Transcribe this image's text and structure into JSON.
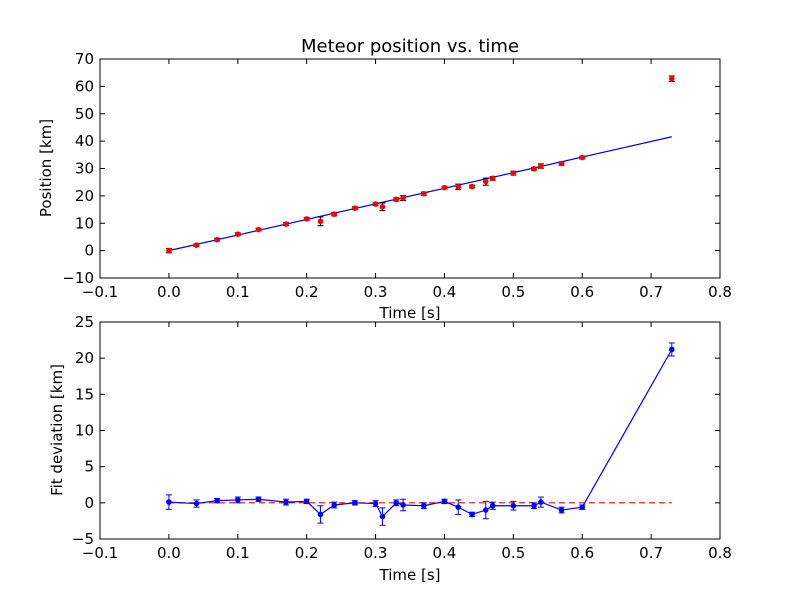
{
  "chart_data": [
    {
      "type": "scatter",
      "title": "Meteor position vs. time",
      "xlabel": "Time [s]",
      "ylabel": "Position [km]",
      "xlim": [
        -0.1,
        0.8
      ],
      "ylim": [
        -10,
        70
      ],
      "xticks": [
        "−0.1",
        "0.0",
        "0.1",
        "0.2",
        "0.3",
        "0.4",
        "0.5",
        "0.6",
        "0.7",
        "0.8"
      ],
      "yticks": [
        "−10",
        "0",
        "10",
        "20",
        "30",
        "40",
        "50",
        "60",
        "70"
      ],
      "grid": false,
      "colors": {
        "points": "#ff0000",
        "fit": "#0000ff"
      },
      "series": [
        {
          "kind": "points-with-errorbars",
          "x": [
            0.0,
            0.04,
            0.07,
            0.1,
            0.13,
            0.17,
            0.2,
            0.22,
            0.24,
            0.27,
            0.3,
            0.31,
            0.33,
            0.34,
            0.37,
            0.4,
            0.42,
            0.44,
            0.46,
            0.47,
            0.5,
            0.53,
            0.54,
            0.57,
            0.6,
            0.73
          ],
          "y": [
            0.0,
            2.0,
            4.0,
            6.0,
            7.7,
            9.7,
            11.6,
            10.7,
            13.3,
            15.5,
            17.0,
            16.0,
            18.7,
            19.2,
            20.8,
            23.0,
            23.3,
            23.4,
            25.2,
            26.4,
            28.3,
            29.9,
            30.9,
            31.8,
            34.0,
            62.8
          ],
          "yerr": [
            0.8,
            0.5,
            0.5,
            0.5,
            0.5,
            0.5,
            0.5,
            1.6,
            0.6,
            0.5,
            0.5,
            1.4,
            0.6,
            0.9,
            0.6,
            0.5,
            1.0,
            0.5,
            1.3,
            0.7,
            0.7,
            0.5,
            0.8,
            0.6,
            0.5,
            1.0
          ]
        },
        {
          "kind": "fit-line",
          "x": [
            0.0,
            0.73
          ],
          "y": [
            0.0,
            41.6
          ]
        }
      ]
    },
    {
      "type": "line",
      "title": "",
      "xlabel": "Time [s]",
      "ylabel": "Fit deviation [km]",
      "xlim": [
        -0.1,
        0.8
      ],
      "ylim": [
        -5,
        25
      ],
      "xticks": [
        "−0.1",
        "0.0",
        "0.1",
        "0.2",
        "0.3",
        "0.4",
        "0.5",
        "0.6",
        "0.7",
        "0.8"
      ],
      "yticks": [
        "−5",
        "0",
        "5",
        "10",
        "15",
        "20",
        "25"
      ],
      "grid": false,
      "colors": {
        "deviation": "#0000ff",
        "zero": "#ff0000"
      },
      "series": [
        {
          "kind": "line-with-errorbars",
          "x": [
            0.0,
            0.04,
            0.07,
            0.1,
            0.13,
            0.17,
            0.2,
            0.22,
            0.24,
            0.27,
            0.3,
            0.31,
            0.33,
            0.34,
            0.37,
            0.4,
            0.42,
            0.44,
            0.46,
            0.47,
            0.5,
            0.53,
            0.54,
            0.57,
            0.6,
            0.73
          ],
          "y": [
            0.1,
            -0.1,
            0.3,
            0.4,
            0.5,
            0.1,
            0.2,
            -1.6,
            -0.3,
            0.0,
            -0.1,
            -1.9,
            0.0,
            -0.3,
            -0.4,
            0.2,
            -0.6,
            -1.6,
            -1.0,
            -0.4,
            -0.4,
            -0.4,
            0.1,
            -1.0,
            -0.6,
            21.2
          ],
          "yerr": [
            1.0,
            0.5,
            0.3,
            0.4,
            0.3,
            0.4,
            0.3,
            1.2,
            0.4,
            0.3,
            0.4,
            1.2,
            0.4,
            0.8,
            0.4,
            0.3,
            1.0,
            0.3,
            1.2,
            0.5,
            0.6,
            0.4,
            0.7,
            0.4,
            0.3,
            0.9
          ]
        },
        {
          "kind": "zero-reference",
          "x": [
            0.0,
            0.73
          ],
          "y": [
            0.0,
            0.0
          ]
        }
      ]
    }
  ]
}
